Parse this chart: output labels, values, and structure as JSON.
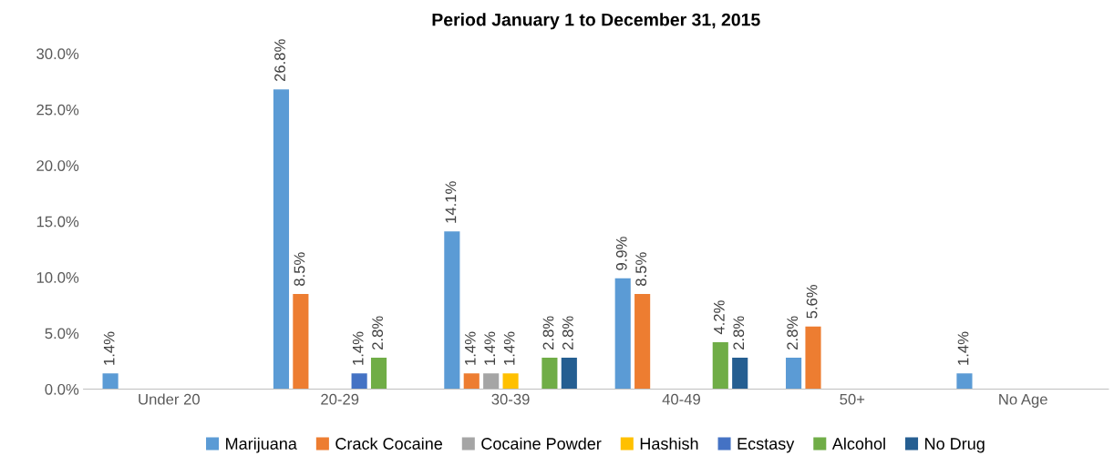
{
  "chart_data": {
    "type": "bar",
    "title": "Period January 1 to December 31, 2015",
    "categories": [
      "Under 20",
      "20-29",
      "30-39",
      "40-49",
      "50+",
      "No Age"
    ],
    "series": [
      {
        "name": "Marijuana",
        "color": "#5b9bd5",
        "values": [
          1.4,
          26.8,
          14.1,
          9.9,
          2.8,
          1.4
        ],
        "value_labels": [
          "1.4%",
          "26.8%",
          "14.1%",
          "9.9%",
          "2.8%",
          "1.4%"
        ]
      },
      {
        "name": "Crack Cocaine",
        "color": "#ed7d31",
        "values": [
          null,
          8.5,
          1.4,
          8.5,
          5.6,
          null
        ],
        "value_labels": [
          null,
          "8.5%",
          "1.4%",
          "8.5%",
          "5.6%",
          null
        ]
      },
      {
        "name": "Cocaine Powder",
        "color": "#a5a5a5",
        "values": [
          null,
          null,
          1.4,
          null,
          null,
          null
        ],
        "value_labels": [
          null,
          null,
          "1.4%",
          null,
          null,
          null
        ]
      },
      {
        "name": "Hashish",
        "color": "#ffc000",
        "values": [
          null,
          null,
          1.4,
          null,
          null,
          null
        ],
        "value_labels": [
          null,
          null,
          "1.4%",
          null,
          null,
          null
        ]
      },
      {
        "name": "Ecstasy",
        "color": "#4472c4",
        "values": [
          null,
          1.4,
          null,
          null,
          null,
          null
        ],
        "value_labels": [
          null,
          "1.4%",
          null,
          null,
          null,
          null
        ]
      },
      {
        "name": "Alcohol",
        "color": "#70ad47",
        "values": [
          null,
          2.8,
          2.8,
          4.2,
          null,
          null
        ],
        "value_labels": [
          null,
          "2.8%",
          "2.8%",
          "4.2%",
          null,
          null
        ]
      },
      {
        "name": "No Drug",
        "color": "#255e91",
        "values": [
          null,
          null,
          2.8,
          2.8,
          null,
          null
        ],
        "value_labels": [
          null,
          null,
          "2.8%",
          "2.8%",
          null,
          null
        ]
      }
    ],
    "ylim": [
      0,
      30
    ],
    "yticks": [
      {
        "value": 0,
        "label": "0.0%"
      },
      {
        "value": 5,
        "label": "5.0%"
      },
      {
        "value": 10,
        "label": "10.0%"
      },
      {
        "value": 15,
        "label": "15.0%"
      },
      {
        "value": 20,
        "label": "20.0%"
      },
      {
        "value": 25,
        "label": "25.0%"
      },
      {
        "value": 30,
        "label": "30.0%"
      }
    ],
    "legend": "bottom",
    "grid": false
  }
}
